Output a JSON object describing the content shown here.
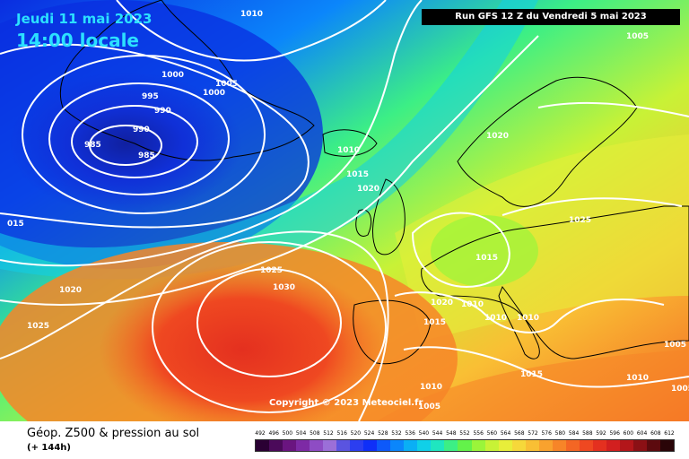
{
  "header": {
    "date": "Jeudi 11 mai 2023",
    "time": "14:00 locale",
    "run": "Run GFS 12 Z du Vendredi 5 mai 2023"
  },
  "copyright": "Copyright © 2023 Meteociel.fr",
  "footer": {
    "title": "Géop. Z500 & pression au sol",
    "subtitle": "(+ 144h)"
  },
  "legend": {
    "values": [
      "492",
      "496",
      "500",
      "504",
      "508",
      "512",
      "516",
      "520",
      "524",
      "528",
      "532",
      "536",
      "540",
      "544",
      "548",
      "552",
      "556",
      "560",
      "564",
      "568",
      "572",
      "576",
      "580",
      "584",
      "588",
      "592",
      "596",
      "600",
      "604",
      "608",
      "612"
    ],
    "colors": [
      "#2a0033",
      "#4b0a5a",
      "#6a1580",
      "#7d2aa5",
      "#8e4cc4",
      "#9b6fd8",
      "#5a54e0",
      "#2c3ef0",
      "#0f2ff8",
      "#0d59fa",
      "#0b86fb",
      "#0aaff5",
      "#10d0e8",
      "#1fe6c0",
      "#3cef85",
      "#63f24a",
      "#9af53a",
      "#c8f236",
      "#e8ee3a",
      "#f6d83a",
      "#f9bf34",
      "#f9a22e",
      "#f78528",
      "#f46624",
      "#ef4821",
      "#e4301f",
      "#d21f1f",
      "#b3161a",
      "#8b1015",
      "#5c0a0e",
      "#2a0508"
    ]
  },
  "isobar_labels": [
    {
      "text": "1010"
    },
    {
      "text": "1000"
    },
    {
      "text": "1005"
    },
    {
      "text": "1000"
    },
    {
      "text": "995"
    },
    {
      "text": "990"
    },
    {
      "text": "990"
    },
    {
      "text": "985"
    },
    {
      "text": "985"
    },
    {
      "text": "1010"
    },
    {
      "text": "1015"
    },
    {
      "text": "1020"
    },
    {
      "text": "015"
    },
    {
      "text": "1020"
    },
    {
      "text": "1025"
    },
    {
      "text": "1025"
    },
    {
      "text": "1030"
    },
    {
      "text": "1005"
    },
    {
      "text": "1020"
    },
    {
      "text": "1025"
    },
    {
      "text": "1015"
    },
    {
      "text": "1020"
    },
    {
      "text": "1010"
    },
    {
      "text": "1015"
    },
    {
      "text": "1010"
    },
    {
      "text": "1010"
    },
    {
      "text": "1015"
    },
    {
      "text": "1010"
    },
    {
      "text": "1005"
    },
    {
      "text": "1005"
    },
    {
      "text": "1010"
    },
    {
      "text": "1005"
    }
  ]
}
